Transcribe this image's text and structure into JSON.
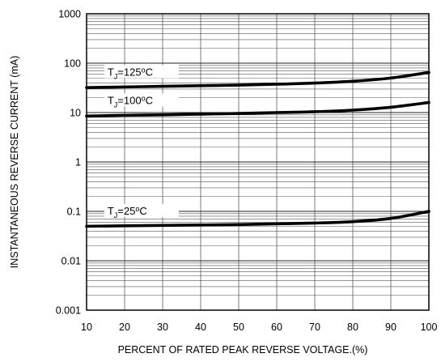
{
  "chart_data": {
    "type": "line",
    "xlabel": "PERCENT OF RATED PEAK REVERSE VOLTAGE.(%)",
    "ylabel": "INSTANTANEOUS REVERSE CURRENT (mA)",
    "yscale": "log",
    "xlim": [
      10,
      100
    ],
    "ylim": [
      0.001,
      1000
    ],
    "grid": true,
    "x_ticks": [
      10,
      20,
      30,
      40,
      50,
      60,
      70,
      80,
      90,
      100
    ],
    "x_tick_labels": [
      "10",
      "20",
      "30",
      "40",
      "50",
      "60",
      "70",
      "80",
      "90",
      "100"
    ],
    "y_ticks": [
      0.001,
      0.01,
      0.1,
      1,
      10,
      100,
      1000
    ],
    "y_tick_labels": [
      "0.001",
      "0.01",
      "0.1",
      "1",
      "10",
      "100",
      "1000"
    ],
    "series": [
      {
        "name_main": "T",
        "name_sub": "J",
        "name_rest": "=125",
        "name_sup": "o",
        "name_unit": "C",
        "x": [
          10,
          20,
          30,
          40,
          50,
          60,
          70,
          80,
          90,
          100
        ],
        "y": [
          32,
          33,
          34,
          35,
          36,
          37.5,
          39.5,
          43,
          50,
          65
        ]
      },
      {
        "name_main": "T",
        "name_sub": "J",
        "name_rest": "=100",
        "name_sup": "o",
        "name_unit": "C",
        "x": [
          10,
          20,
          30,
          40,
          50,
          60,
          70,
          80,
          90,
          100
        ],
        "y": [
          8.5,
          8.8,
          9.0,
          9.3,
          9.6,
          10.0,
          10.4,
          11.2,
          12.8,
          16
        ]
      },
      {
        "name_main": "T",
        "name_sub": "J",
        "name_rest": "=25",
        "name_sup": "o",
        "name_unit": "C",
        "x": [
          10,
          20,
          30,
          40,
          50,
          60,
          70,
          80,
          90,
          100
        ],
        "y": [
          0.05,
          0.051,
          0.052,
          0.053,
          0.054,
          0.056,
          0.058,
          0.062,
          0.072,
          0.1
        ]
      }
    ]
  }
}
